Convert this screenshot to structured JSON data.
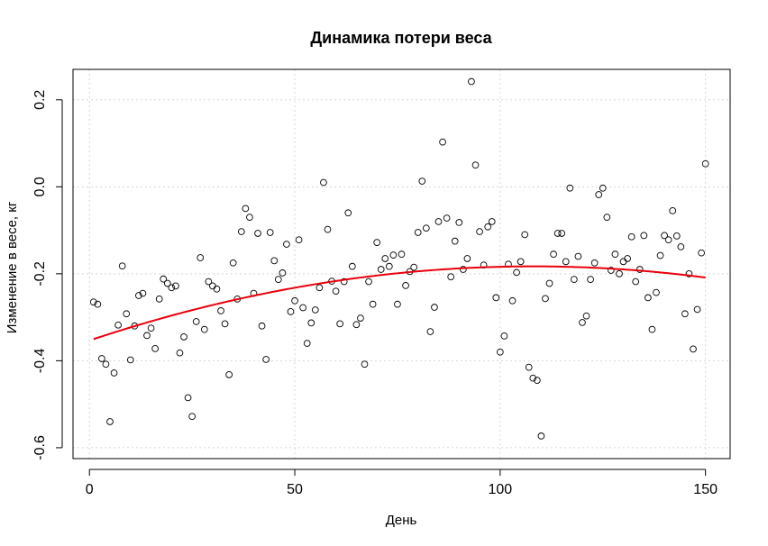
{
  "chart_data": {
    "type": "scatter",
    "title": "Динамика потери веса",
    "xlabel": "День",
    "ylabel": "Изменение в весе, кг",
    "xlim": [
      -4,
      156
    ],
    "ylim": [
      -0.625,
      0.27
    ],
    "xticks": [
      0,
      50,
      100,
      150
    ],
    "xtick_labels": [
      "0",
      "50",
      "100",
      "150"
    ],
    "yticks": [
      -0.6,
      -0.4,
      -0.2,
      0.0,
      0.2
    ],
    "ytick_labels": [
      "-0.6",
      "-0.4",
      "-0.2",
      "0.0",
      "0.2"
    ],
    "grid": true,
    "colors": {
      "points": "#000000",
      "fit": "#e8000b",
      "grid": "#d8d8d8"
    },
    "series": [
      {
        "type": "scatter",
        "x": [
          1,
          2,
          3,
          4,
          5,
          6,
          7,
          8,
          9,
          10,
          11,
          12,
          13,
          14,
          15,
          16,
          17,
          18,
          19,
          20,
          21,
          22,
          23,
          24,
          25,
          26,
          27,
          28,
          29,
          30,
          31,
          32,
          33,
          34,
          35,
          36,
          37,
          38,
          39,
          40,
          41,
          42,
          43,
          44,
          45,
          46,
          47,
          48,
          49,
          50,
          51,
          52,
          53,
          54,
          55,
          56,
          57,
          58,
          59,
          60,
          61,
          62,
          63,
          64,
          65,
          66,
          67,
          68,
          69,
          70,
          71,
          72,
          73,
          74,
          75,
          76,
          77,
          78,
          79,
          80,
          81,
          82,
          83,
          84,
          85,
          86,
          87,
          88,
          89,
          90,
          91,
          92,
          93,
          94,
          95,
          96,
          97,
          98,
          99,
          100,
          101,
          102,
          103,
          104,
          105,
          106,
          107,
          108,
          109,
          110,
          111,
          112,
          113,
          114,
          115,
          116,
          117,
          118,
          119,
          120,
          121,
          122,
          123,
          124,
          125,
          126,
          127,
          128,
          129,
          130,
          131,
          132,
          133,
          134,
          135,
          136,
          137,
          138,
          139,
          140,
          141,
          142,
          143,
          144,
          145,
          146,
          147,
          148,
          149,
          150
        ],
        "y": [
          -0.265,
          -0.27,
          -0.395,
          -0.408,
          -0.54,
          -0.428,
          -0.318,
          -0.182,
          -0.292,
          -0.398,
          -0.32,
          -0.25,
          -0.245,
          -0.342,
          -0.325,
          -0.372,
          -0.258,
          -0.212,
          -0.222,
          -0.232,
          -0.228,
          -0.382,
          -0.345,
          -0.485,
          -0.528,
          -0.31,
          -0.163,
          -0.328,
          -0.218,
          -0.228,
          -0.235,
          -0.285,
          -0.315,
          -0.432,
          -0.175,
          -0.258,
          -0.103,
          -0.05,
          -0.07,
          -0.245,
          -0.107,
          -0.32,
          -0.397,
          -0.105,
          -0.17,
          -0.213,
          -0.198,
          -0.132,
          -0.287,
          -0.262,
          -0.122,
          -0.278,
          -0.36,
          -0.313,
          -0.283,
          -0.232,
          0.01,
          -0.098,
          -0.217,
          -0.24,
          -0.315,
          -0.218,
          -0.06,
          -0.183,
          -0.317,
          -0.302,
          -0.408,
          -0.218,
          -0.27,
          -0.128,
          -0.19,
          -0.165,
          -0.183,
          -0.157,
          -0.27,
          -0.155,
          -0.227,
          -0.195,
          -0.185,
          -0.105,
          0.013,
          -0.095,
          -0.333,
          -0.277,
          -0.08,
          0.103,
          -0.072,
          -0.207,
          -0.125,
          -0.082,
          -0.19,
          -0.165,
          0.242,
          0.05,
          -0.103,
          -0.18,
          -0.092,
          -0.08,
          -0.255,
          -0.38,
          -0.343,
          -0.178,
          -0.262,
          -0.197,
          -0.172,
          -0.11,
          -0.415,
          -0.44,
          -0.445,
          -0.573,
          -0.257,
          -0.222,
          -0.155,
          -0.107,
          -0.107,
          -0.172,
          -0.003,
          -0.213,
          -0.16,
          -0.312,
          -0.297,
          -0.213,
          -0.175,
          -0.018,
          -0.003,
          -0.07,
          -0.192,
          -0.155,
          -0.2,
          -0.172,
          -0.165,
          -0.115,
          -0.218,
          -0.19,
          -0.112,
          -0.255,
          -0.328,
          -0.243,
          -0.158,
          -0.112,
          -0.122,
          -0.055,
          -0.113,
          -0.138,
          -0.292,
          -0.2,
          -0.373,
          -0.282,
          -0.152,
          0.053
        ]
      },
      {
        "type": "line",
        "fit": "quadratic",
        "coefficients": {
          "a": -1.461e-05,
          "b": 0.0031562,
          "c": -0.35339
        },
        "x_range": [
          1,
          150
        ]
      }
    ]
  }
}
